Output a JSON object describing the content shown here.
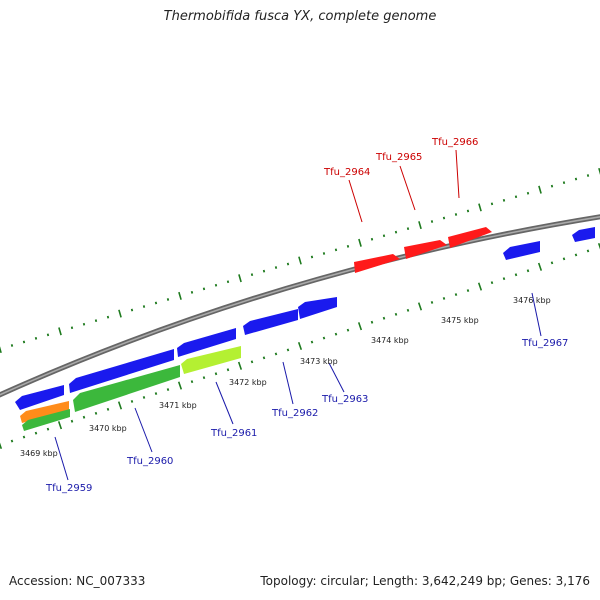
{
  "title": "Thermobifida fusca YX, complete genome",
  "footer": {
    "accession": "Accession: NC_007333",
    "stats": "Topology: circular; Length: 3,642,249 bp; Genes: 3,176"
  },
  "colors": {
    "forward_cds": "#ff1a1a",
    "reverse_cds": "#1a1aee",
    "orange_feature": "#ff8c1a",
    "green_feature": "#3cb83c",
    "lightgreen_feature": "#b4f032",
    "tick": "#1e7a1e",
    "backbone": "#7a7a7a",
    "forward_label": "#cc0000",
    "reverse_label": "#1a1aaa"
  },
  "scale_labels": [
    {
      "id": "t3469",
      "text": "3469 kbp"
    },
    {
      "id": "t3470",
      "text": "3470 kbp"
    },
    {
      "id": "t3471",
      "text": "3471 kbp"
    },
    {
      "id": "t3472",
      "text": "3472 kbp"
    },
    {
      "id": "t3473",
      "text": "3473 kbp"
    },
    {
      "id": "t3474",
      "text": "3474 kbp"
    },
    {
      "id": "t3475",
      "text": "3475 kbp"
    },
    {
      "id": "t3476",
      "text": "3476 kbp"
    }
  ],
  "gene_labels": [
    {
      "id": "g2959",
      "text": "Tfu_2959",
      "strand": "reverse"
    },
    {
      "id": "g2960",
      "text": "Tfu_2960",
      "strand": "reverse"
    },
    {
      "id": "g2961",
      "text": "Tfu_2961",
      "strand": "reverse"
    },
    {
      "id": "g2962",
      "text": "Tfu_2962",
      "strand": "reverse"
    },
    {
      "id": "g2963",
      "text": "Tfu_2963",
      "strand": "reverse"
    },
    {
      "id": "g2964",
      "text": "Tfu_2964",
      "strand": "forward"
    },
    {
      "id": "g2965",
      "text": "Tfu_2965",
      "strand": "forward"
    },
    {
      "id": "g2966",
      "text": "Tfu_2966",
      "strand": "forward"
    },
    {
      "id": "g2967",
      "text": "Tfu_2967",
      "strand": "reverse"
    }
  ]
}
